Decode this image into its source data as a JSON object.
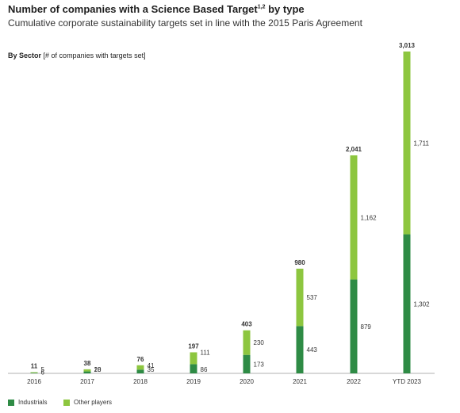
{
  "title": "Number of companies with a Science Based Target",
  "title_sup": "1,2",
  "title_suffix": "by type",
  "subtitle": "Cumulative corporate sustainability targets set in line with the 2015 Paris Agreement",
  "section_bold": "By Sector",
  "section_rest": "[# of companies with targets set]",
  "colors": {
    "industrials": "#2e8b45",
    "other": "#8dc63f",
    "axis": "#999999"
  },
  "chart_data": {
    "type": "bar",
    "stacked": true,
    "categories": [
      "2016",
      "2017",
      "2018",
      "2019",
      "2020",
      "2021",
      "2022",
      "YTD 2023"
    ],
    "series": [
      {
        "name": "Industrials",
        "values": [
          5,
          18,
          35,
          86,
          173,
          443,
          879,
          1302
        ]
      },
      {
        "name": "Other players",
        "values": [
          6,
          20,
          41,
          111,
          230,
          537,
          1162,
          1711
        ]
      }
    ],
    "totals": [
      11,
      38,
      76,
      197,
      403,
      980,
      2041,
      3013
    ],
    "labels": {
      "industrials": [
        "5",
        "18",
        "35",
        "86",
        "173",
        "443",
        "879",
        "1,302"
      ],
      "other": [
        "6",
        "20",
        "41",
        "111",
        "230",
        "537",
        "1,162",
        "1,711"
      ],
      "totals": [
        "11",
        "38",
        "76",
        "197",
        "403",
        "980",
        "2,041",
        "3,013"
      ]
    },
    "ylim": [
      0,
      3013
    ]
  },
  "legend": [
    {
      "label": "Industrials",
      "color": "#2e8b45"
    },
    {
      "label": "Other players",
      "color": "#8dc63f"
    }
  ]
}
